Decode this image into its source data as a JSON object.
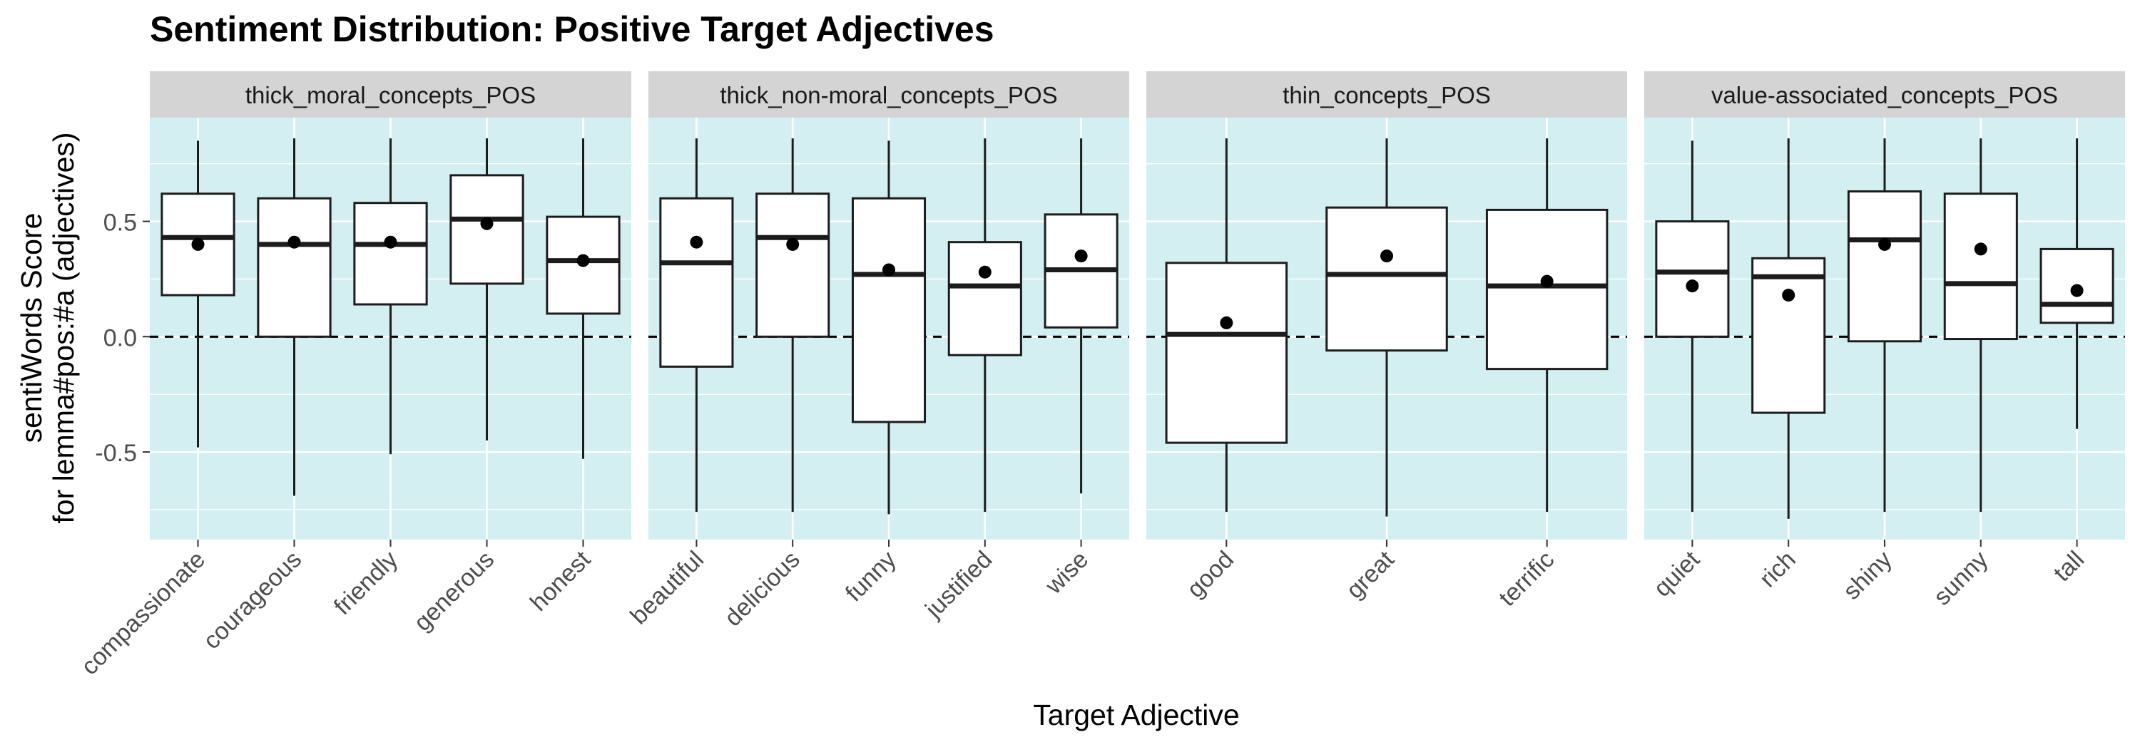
{
  "chart_data": {
    "type": "boxplot",
    "title": "Sentiment Distribution: Positive Target Adjectives",
    "xlabel": "Target Adjective",
    "ylabel_lines": [
      "sentiWords Score",
      "for lemma#pos:#a (adjectives)"
    ],
    "ylim": [
      -0.88,
      0.95
    ],
    "yticks": [
      -0.5,
      0.0,
      0.5
    ],
    "ytick_labels": [
      "-0.5",
      "0.0",
      "0.5"
    ],
    "reference_line": 0.0,
    "grid": true,
    "colors": {
      "panel_background": "#d3eff1",
      "strip_background": "#d4d4d4",
      "box_fill": "#ffffff",
      "box_stroke": "#1c1c1c",
      "mean_point": "#000000",
      "grid": "#ffffff"
    },
    "facets": [
      {
        "name": "thick_moral_concepts_POS",
        "items": [
          {
            "label": "compassionate",
            "min": -0.48,
            "q1": 0.18,
            "median": 0.43,
            "q3": 0.62,
            "max": 0.85,
            "mean": 0.4
          },
          {
            "label": "courageous",
            "min": -0.69,
            "q1": 0.0,
            "median": 0.4,
            "q3": 0.6,
            "max": 0.86,
            "mean": 0.41
          },
          {
            "label": "friendly",
            "min": -0.51,
            "q1": 0.14,
            "median": 0.4,
            "q3": 0.58,
            "max": 0.86,
            "mean": 0.41
          },
          {
            "label": "generous",
            "min": -0.45,
            "q1": 0.23,
            "median": 0.51,
            "q3": 0.7,
            "max": 0.86,
            "mean": 0.49
          },
          {
            "label": "honest",
            "min": -0.53,
            "q1": 0.1,
            "median": 0.33,
            "q3": 0.52,
            "max": 0.86,
            "mean": 0.33
          }
        ]
      },
      {
        "name": "thick_non-moral_concepts_POS",
        "items": [
          {
            "label": "beautiful",
            "min": -0.76,
            "q1": -0.13,
            "median": 0.32,
            "q3": 0.6,
            "max": 0.86,
            "mean": 0.41
          },
          {
            "label": "delicious",
            "min": -0.76,
            "q1": 0.0,
            "median": 0.43,
            "q3": 0.62,
            "max": 0.86,
            "mean": 0.4
          },
          {
            "label": "funny",
            "min": -0.77,
            "q1": -0.37,
            "median": 0.27,
            "q3": 0.6,
            "max": 0.85,
            "mean": 0.29
          },
          {
            "label": "justified",
            "min": -0.76,
            "q1": -0.08,
            "median": 0.22,
            "q3": 0.41,
            "max": 0.86,
            "mean": 0.28
          },
          {
            "label": "wise",
            "min": -0.68,
            "q1": 0.04,
            "median": 0.29,
            "q3": 0.53,
            "max": 0.86,
            "mean": 0.35
          }
        ]
      },
      {
        "name": "thin_concepts_POS",
        "items": [
          {
            "label": "good",
            "min": -0.76,
            "q1": -0.46,
            "median": 0.01,
            "q3": 0.32,
            "max": 0.86,
            "mean": 0.06
          },
          {
            "label": "great",
            "min": -0.78,
            "q1": -0.06,
            "median": 0.27,
            "q3": 0.56,
            "max": 0.86,
            "mean": 0.35
          },
          {
            "label": "terrific",
            "min": -0.76,
            "q1": -0.14,
            "median": 0.22,
            "q3": 0.55,
            "max": 0.86,
            "mean": 0.24
          }
        ]
      },
      {
        "name": "value-associated_concepts_POS",
        "items": [
          {
            "label": "quiet",
            "min": -0.76,
            "q1": 0.0,
            "median": 0.28,
            "q3": 0.5,
            "max": 0.85,
            "mean": 0.22
          },
          {
            "label": "rich",
            "min": -0.79,
            "q1": -0.33,
            "median": 0.26,
            "q3": 0.34,
            "max": 0.86,
            "mean": 0.18
          },
          {
            "label": "shiny",
            "min": -0.76,
            "q1": -0.02,
            "median": 0.42,
            "q3": 0.63,
            "max": 0.86,
            "mean": 0.4
          },
          {
            "label": "sunny",
            "min": -0.76,
            "q1": -0.01,
            "median": 0.23,
            "q3": 0.62,
            "max": 0.86,
            "mean": 0.38
          },
          {
            "label": "tall",
            "min": -0.4,
            "q1": 0.06,
            "median": 0.14,
            "q3": 0.38,
            "max": 0.86,
            "mean": 0.2
          }
        ]
      }
    ]
  }
}
